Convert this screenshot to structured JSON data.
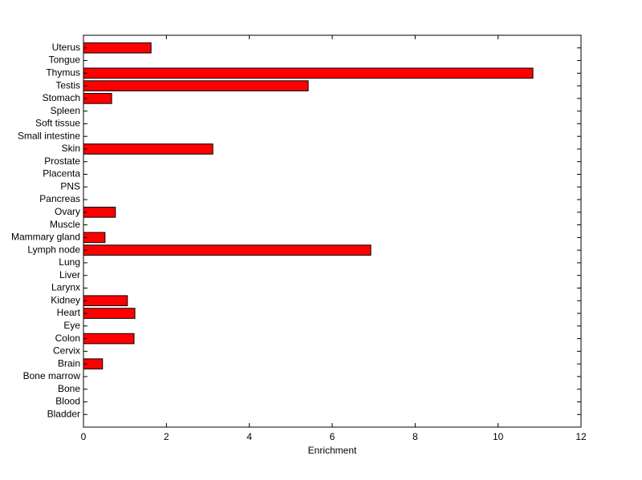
{
  "chart_data": {
    "type": "barh",
    "xlabel": "Enrichment",
    "categories": [
      "Bladder",
      "Blood",
      "Bone",
      "Bone marrow",
      "Brain",
      "Cervix",
      "Colon",
      "Eye",
      "Heart",
      "Kidney",
      "Larynx",
      "Liver",
      "Lung",
      "Lymph node",
      "Mammary gland",
      "Muscle",
      "Ovary",
      "Pancreas",
      "PNS",
      "Placenta",
      "Prostate",
      "Skin",
      "Small intestine",
      "Soft tissue",
      "Spleen",
      "Stomach",
      "Testis",
      "Thymus",
      "Tongue",
      "Uterus"
    ],
    "values": [
      0,
      0,
      0,
      0,
      0.46,
      0,
      1.22,
      0,
      1.24,
      1.06,
      0,
      0,
      0,
      6.93,
      0.52,
      0,
      0.77,
      0,
      0,
      0,
      0,
      3.12,
      0,
      0,
      0,
      0.68,
      5.42,
      10.84,
      0,
      1.63
    ],
    "color": "#ff0000",
    "xlim": [
      0,
      12
    ],
    "xticks": [
      0,
      2,
      4,
      6,
      8,
      10,
      12
    ]
  }
}
